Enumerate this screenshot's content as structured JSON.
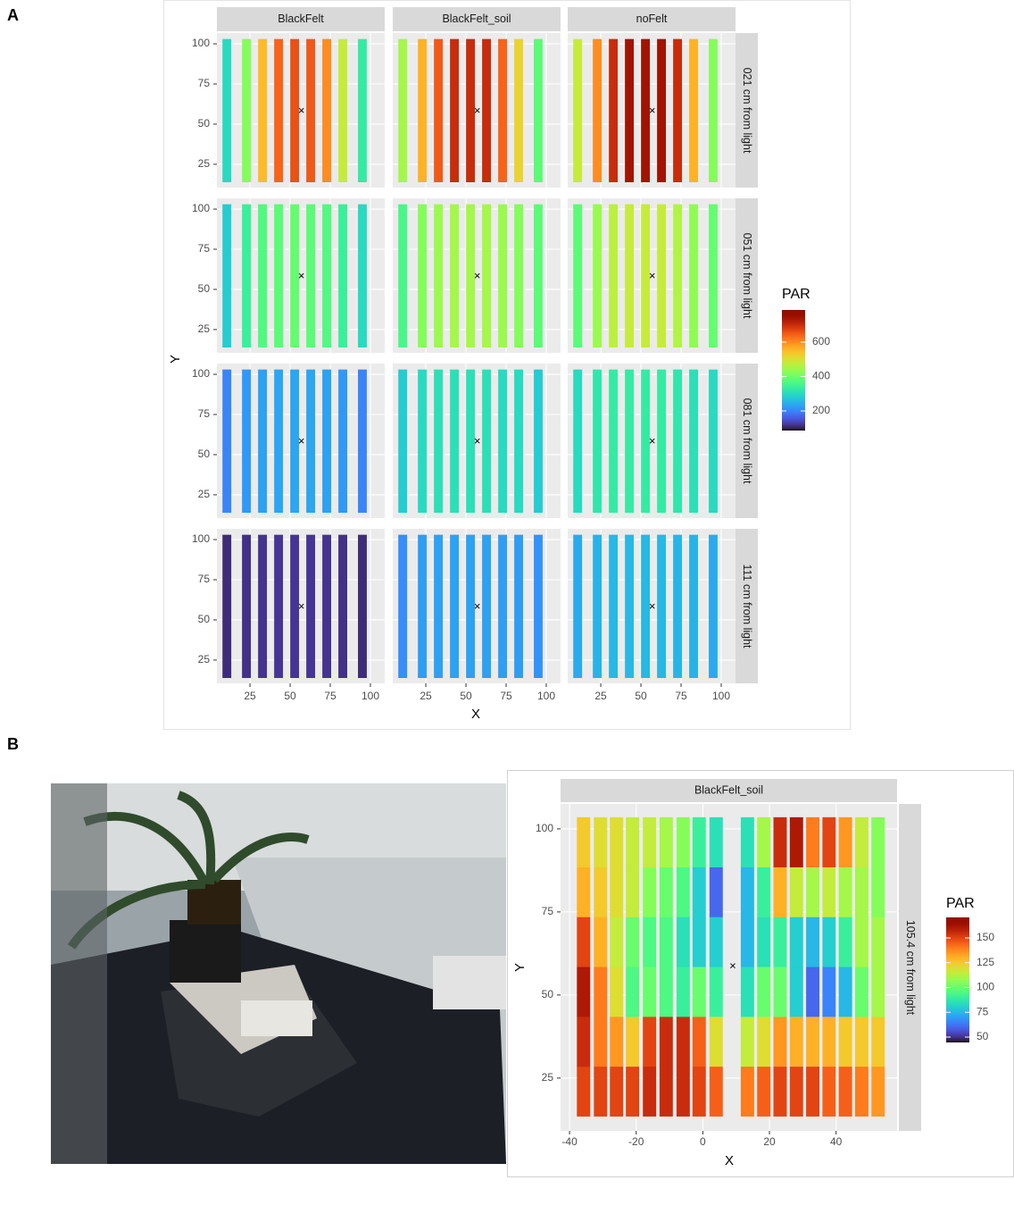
{
  "figure": {
    "panel_labels": [
      "A",
      "B"
    ]
  },
  "chart_data": [
    {
      "type": "heatmap",
      "x_label": "X",
      "y_label": "Y",
      "legend_title": "PAR",
      "colormap": "turbo",
      "color_lim": [
        86,
        787
      ],
      "color_ticks": [
        200,
        400,
        600
      ],
      "xlim": [
        4.4,
        108.9
      ],
      "ylim": [
        10.5,
        106.7
      ],
      "xticks": [
        25,
        50,
        75,
        100
      ],
      "yticks": [
        25,
        50,
        75,
        100
      ],
      "grid": true,
      "col_labels": [
        "BlackFelt",
        "BlackFelt_soil",
        "noFelt"
      ],
      "row_labels": [
        "021 cm from light",
        "051 cm from light",
        "081 cm from light",
        "111 cm from light"
      ],
      "marker": {
        "x": 57,
        "y": 58,
        "symbol": "×"
      },
      "x": [
        10.6,
        22.8,
        32.8,
        42.8,
        52.8,
        62.8,
        72.8,
        82.8,
        95
      ],
      "y_edges": [
        14,
        103
      ],
      "values": [
        [
          [
            [
              300
            ],
            [
              420
            ],
            [
              550
            ],
            [
              640
            ],
            [
              660
            ],
            [
              650
            ],
            [
              600
            ],
            [
              480
            ],
            [
              330
            ]
          ],
          [
            [
              450
            ],
            [
              560
            ],
            [
              650
            ],
            [
              700
            ],
            [
              700
            ],
            [
              700
            ],
            [
              640
            ],
            [
              520
            ],
            [
              380
            ]
          ],
          [
            [
              480
            ],
            [
              600
            ],
            [
              700
            ],
            [
              740
            ],
            [
              740
            ],
            [
              740
            ],
            [
              700
            ],
            [
              560
            ],
            [
              420
            ]
          ]
        ],
        [
          [
            [
              280
            ],
            [
              340
            ],
            [
              370
            ],
            [
              380
            ],
            [
              390
            ],
            [
              380
            ],
            [
              370
            ],
            [
              340
            ],
            [
              300
            ]
          ],
          [
            [
              360
            ],
            [
              420
            ],
            [
              440
            ],
            [
              450
            ],
            [
              450
            ],
            [
              450
            ],
            [
              440
            ],
            [
              420
            ],
            [
              380
            ]
          ],
          [
            [
              380
            ],
            [
              440
            ],
            [
              470
            ],
            [
              480
            ],
            [
              480
            ],
            [
              480
            ],
            [
              460
            ],
            [
              430
            ],
            [
              390
            ]
          ]
        ],
        [
          [
            [
              200
            ],
            [
              220
            ],
            [
              230
            ],
            [
              235
            ],
            [
              235
            ],
            [
              235
            ],
            [
              230
            ],
            [
              220
            ],
            [
              200
            ]
          ],
          [
            [
              280
            ],
            [
              300
            ],
            [
              310
            ],
            [
              310
            ],
            [
              310
            ],
            [
              310
            ],
            [
              300
            ],
            [
              300
            ],
            [
              280
            ]
          ],
          [
            [
              300
            ],
            [
              320
            ],
            [
              330
            ],
            [
              330
            ],
            [
              330
            ],
            [
              330
            ],
            [
              320
            ],
            [
              310
            ],
            [
              300
            ]
          ]
        ],
        [
          [
            [
              110
            ],
            [
              115
            ],
            [
              118
            ],
            [
              120
            ],
            [
              120
            ],
            [
              120
            ],
            [
              118
            ],
            [
              115
            ],
            [
              110
            ]
          ],
          [
            [
              210
            ],
            [
              225
            ],
            [
              230
            ],
            [
              230
            ],
            [
              230
            ],
            [
              230
            ],
            [
              228
            ],
            [
              225
            ],
            [
              215
            ]
          ],
          [
            [
              240
            ],
            [
              250
            ],
            [
              255
            ],
            [
              255
            ],
            [
              255
            ],
            [
              255
            ],
            [
              252
            ],
            [
              250
            ],
            [
              240
            ]
          ]
        ]
      ]
    },
    {
      "type": "heatmap",
      "x_label": "X",
      "y_label": "Y",
      "legend_title": "PAR",
      "colormap": "turbo",
      "color_lim": [
        44.6,
        170.7
      ],
      "color_ticks": [
        50,
        75,
        100,
        125,
        150
      ],
      "xlim": [
        -42.7,
        58.3
      ],
      "ylim": [
        9.1,
        107.5
      ],
      "xticks": [
        -40,
        -20,
        0,
        20,
        40
      ],
      "yticks": [
        25,
        50,
        75,
        100
      ],
      "grid": true,
      "col_labels": [
        "BlackFelt_soil"
      ],
      "row_labels": [
        "105.4 cm from light"
      ],
      "marker": {
        "x": 9,
        "y": 58.6,
        "symbol": "×"
      },
      "x": [
        -35.8,
        -30.7,
        -25.9,
        -21.1,
        -16,
        -11,
        -5.9,
        -1.1,
        4,
        13.4,
        18.3,
        23.2,
        28.1,
        33,
        37.9,
        42.8,
        47.7,
        52.6
      ],
      "y_edges": [
        13.5,
        28.5,
        43.5,
        58.5,
        73.5,
        88.5,
        103.5
      ],
      "values": [
        [
          [
            [
              150,
              155,
              160,
              150,
              130,
              125
            ],
            [
              150,
              140,
              140,
              130,
              125,
              120
            ],
            [
              150,
              135,
              120,
              115,
              120,
              120
            ],
            [
              150,
              125,
              95,
              100,
              115,
              115
            ],
            [
              155,
              150,
              100,
              95,
              105,
              115
            ],
            [
              155,
              155,
              95,
              95,
              100,
              110
            ],
            [
              155,
              155,
              90,
              85,
              95,
              105
            ],
            [
              150,
              145,
              100,
              80,
              80,
              90
            ],
            [
              145,
              120,
              90,
              80,
              60,
              85
            ],
            [
              140,
              115,
              85,
              75,
              75,
              85
            ],
            [
              145,
              120,
              100,
              85,
              90,
              110
            ],
            [
              150,
              135,
              100,
              90,
              130,
              155
            ],
            [
              150,
              130,
              80,
              80,
              115,
              160
            ],
            [
              150,
              130,
              60,
              75,
              110,
              140
            ],
            [
              145,
              130,
              65,
              80,
              115,
              150
            ],
            [
              145,
              125,
              75,
              90,
              110,
              135
            ],
            [
              140,
              125,
              100,
              110,
              110,
              115
            ],
            [
              135,
              125,
              110,
              110,
              105,
              105
            ]
          ]
        ]
      ]
    }
  ]
}
